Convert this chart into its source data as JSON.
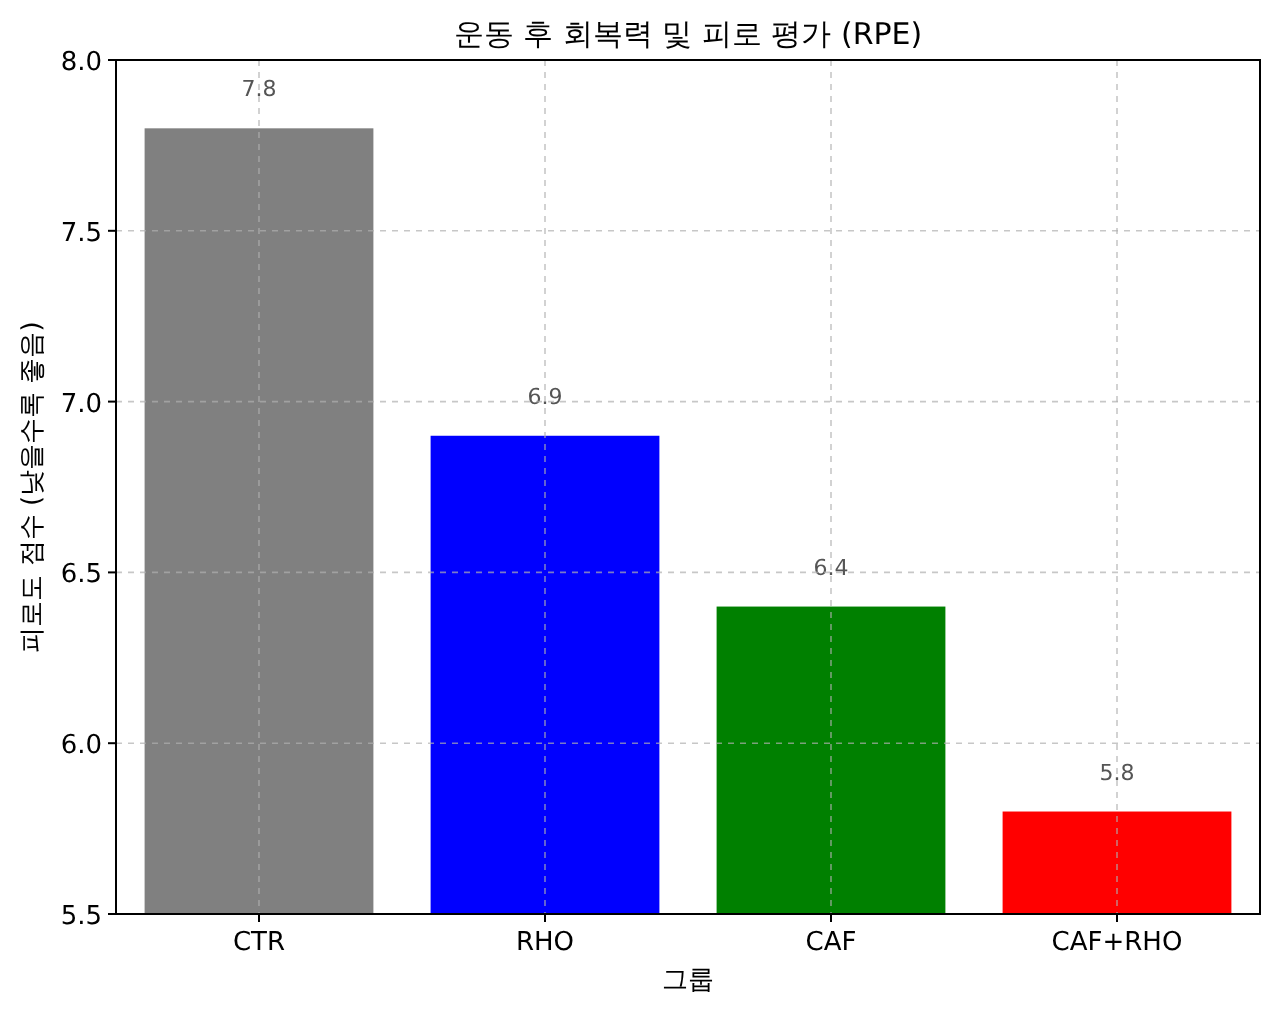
{
  "chart_data": {
    "type": "bar",
    "title": "운동 후 회복력 및 피로 평가 (RPE)",
    "xlabel": "그룹",
    "ylabel": "피로도 점수 (낮을수록 좋음)",
    "categories": [
      "CTR",
      "RHO",
      "CAF",
      "CAF+RHO"
    ],
    "values": [
      7.8,
      6.9,
      6.4,
      5.8
    ],
    "colors": [
      "#808080",
      "#0000ff",
      "#008000",
      "#ff0000"
    ],
    "ylim": [
      5.5,
      8.0
    ],
    "yticks": [
      {
        "value": 5.5,
        "label": "5.5"
      },
      {
        "value": 6,
        "label": "6.0"
      },
      {
        "value": 6.5,
        "label": "6.5"
      },
      {
        "value": 7,
        "label": "7.0"
      },
      {
        "value": 7.5,
        "label": "7.5"
      },
      {
        "value": 8,
        "label": "8.0"
      }
    ],
    "grid": true,
    "data_labels": true
  }
}
